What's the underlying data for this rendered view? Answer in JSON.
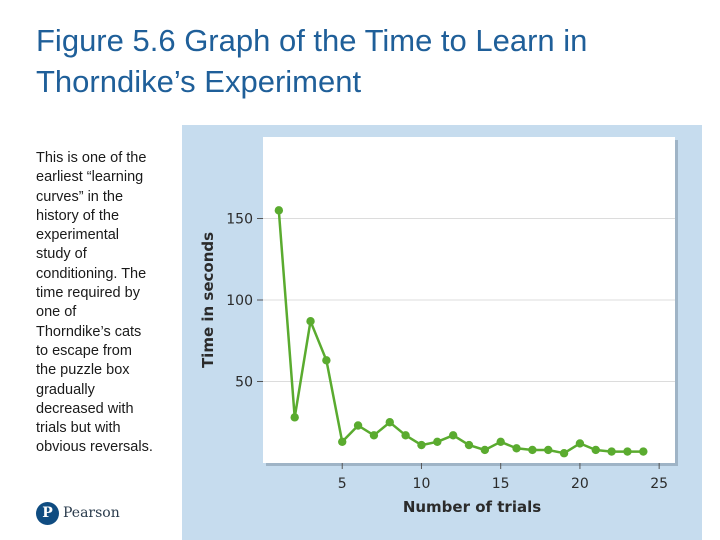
{
  "slide": {
    "title_lines": [
      "Figure 5.6 Graph of the Time to Learn in",
      "Thorndike’s Experiment"
    ],
    "caption_lines": [
      "This is one of the",
      "earliest “learning",
      "curves” in the",
      "history of the",
      "experimental",
      "study of",
      "conditioning. The",
      "time required by",
      "one of",
      "Thorndike’s cats",
      "to escape from",
      "the puzzle box",
      "gradually",
      "decreased with",
      "trials but with",
      "obvious reversals."
    ],
    "logo": {
      "wordmark": "Pearson",
      "glyph": "P",
      "icon": "pearson-logo-icon",
      "color": "#0f4c81"
    }
  },
  "colors": {
    "title": "#1f5f99",
    "figure_background": "#c6dcee",
    "plot_background": "#ffffff",
    "series": "#5aab2f",
    "gridline": "#dcdcdc"
  },
  "chart_data": {
    "type": "line",
    "title": "",
    "xlabel": "Number of trials",
    "ylabel": "Time in seconds",
    "xlim": [
      0,
      26
    ],
    "ylim": [
      0,
      200
    ],
    "xticks": [
      5,
      10,
      15,
      20,
      25
    ],
    "yticks": [
      50,
      100,
      150
    ],
    "grid": true,
    "legend": "none",
    "series": [
      {
        "x": [
          1,
          2,
          3,
          4,
          5,
          6,
          7,
          8,
          9,
          10,
          11,
          12,
          13,
          14,
          15,
          16,
          17,
          18,
          19,
          20,
          21,
          22,
          23,
          24
        ],
        "y": [
          155,
          28,
          87,
          63,
          13,
          23,
          17,
          25,
          17,
          11,
          13,
          17,
          11,
          8,
          13,
          9,
          8,
          8,
          6,
          12,
          8,
          7,
          7,
          7
        ]
      }
    ]
  }
}
